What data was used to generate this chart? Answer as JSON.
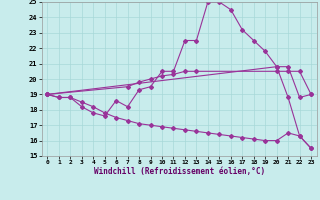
{
  "xlabel": "Windchill (Refroidissement éolien,°C)",
  "bg_color": "#c8ecec",
  "grid_color": "#a8d8d8",
  "line_color": "#993399",
  "ylim": [
    15,
    25
  ],
  "xlim": [
    -0.5,
    23.5
  ],
  "yticks": [
    15,
    16,
    17,
    18,
    19,
    20,
    21,
    22,
    23,
    24,
    25
  ],
  "xticks": [
    0,
    1,
    2,
    3,
    4,
    5,
    6,
    7,
    8,
    9,
    10,
    11,
    12,
    13,
    14,
    15,
    16,
    17,
    18,
    19,
    20,
    21,
    22,
    23
  ],
  "line1_x": [
    0,
    1,
    2,
    3,
    4,
    5,
    6,
    7,
    8,
    9,
    10,
    11,
    12,
    13,
    14,
    15,
    16,
    17,
    18,
    19,
    20,
    21,
    22,
    23
  ],
  "line1_y": [
    19.0,
    18.8,
    18.8,
    18.2,
    17.8,
    17.6,
    18.6,
    18.2,
    19.3,
    19.5,
    20.5,
    20.5,
    22.5,
    22.5,
    25.0,
    25.0,
    24.5,
    23.2,
    22.5,
    21.8,
    20.8,
    18.8,
    16.3,
    15.5
  ],
  "line2_x": [
    0,
    20,
    21,
    22,
    23
  ],
  "line2_y": [
    19.0,
    20.8,
    20.8,
    18.8,
    19.0
  ],
  "line3_x": [
    0,
    7,
    8,
    9,
    10,
    11,
    12,
    13,
    20,
    21,
    22,
    23
  ],
  "line3_y": [
    19.0,
    19.5,
    19.8,
    20.0,
    20.2,
    20.3,
    20.5,
    20.5,
    20.5,
    20.5,
    20.5,
    19.0
  ],
  "line4_x": [
    0,
    1,
    2,
    3,
    4,
    5,
    6,
    7,
    8,
    9,
    10,
    11,
    12,
    13,
    14,
    15,
    16,
    17,
    18,
    19,
    20,
    21,
    22,
    23
  ],
  "line4_y": [
    19.0,
    18.8,
    18.8,
    18.5,
    18.2,
    17.8,
    17.5,
    17.3,
    17.1,
    17.0,
    16.9,
    16.8,
    16.7,
    16.6,
    16.5,
    16.4,
    16.3,
    16.2,
    16.1,
    16.0,
    16.0,
    16.5,
    16.3,
    15.5
  ]
}
